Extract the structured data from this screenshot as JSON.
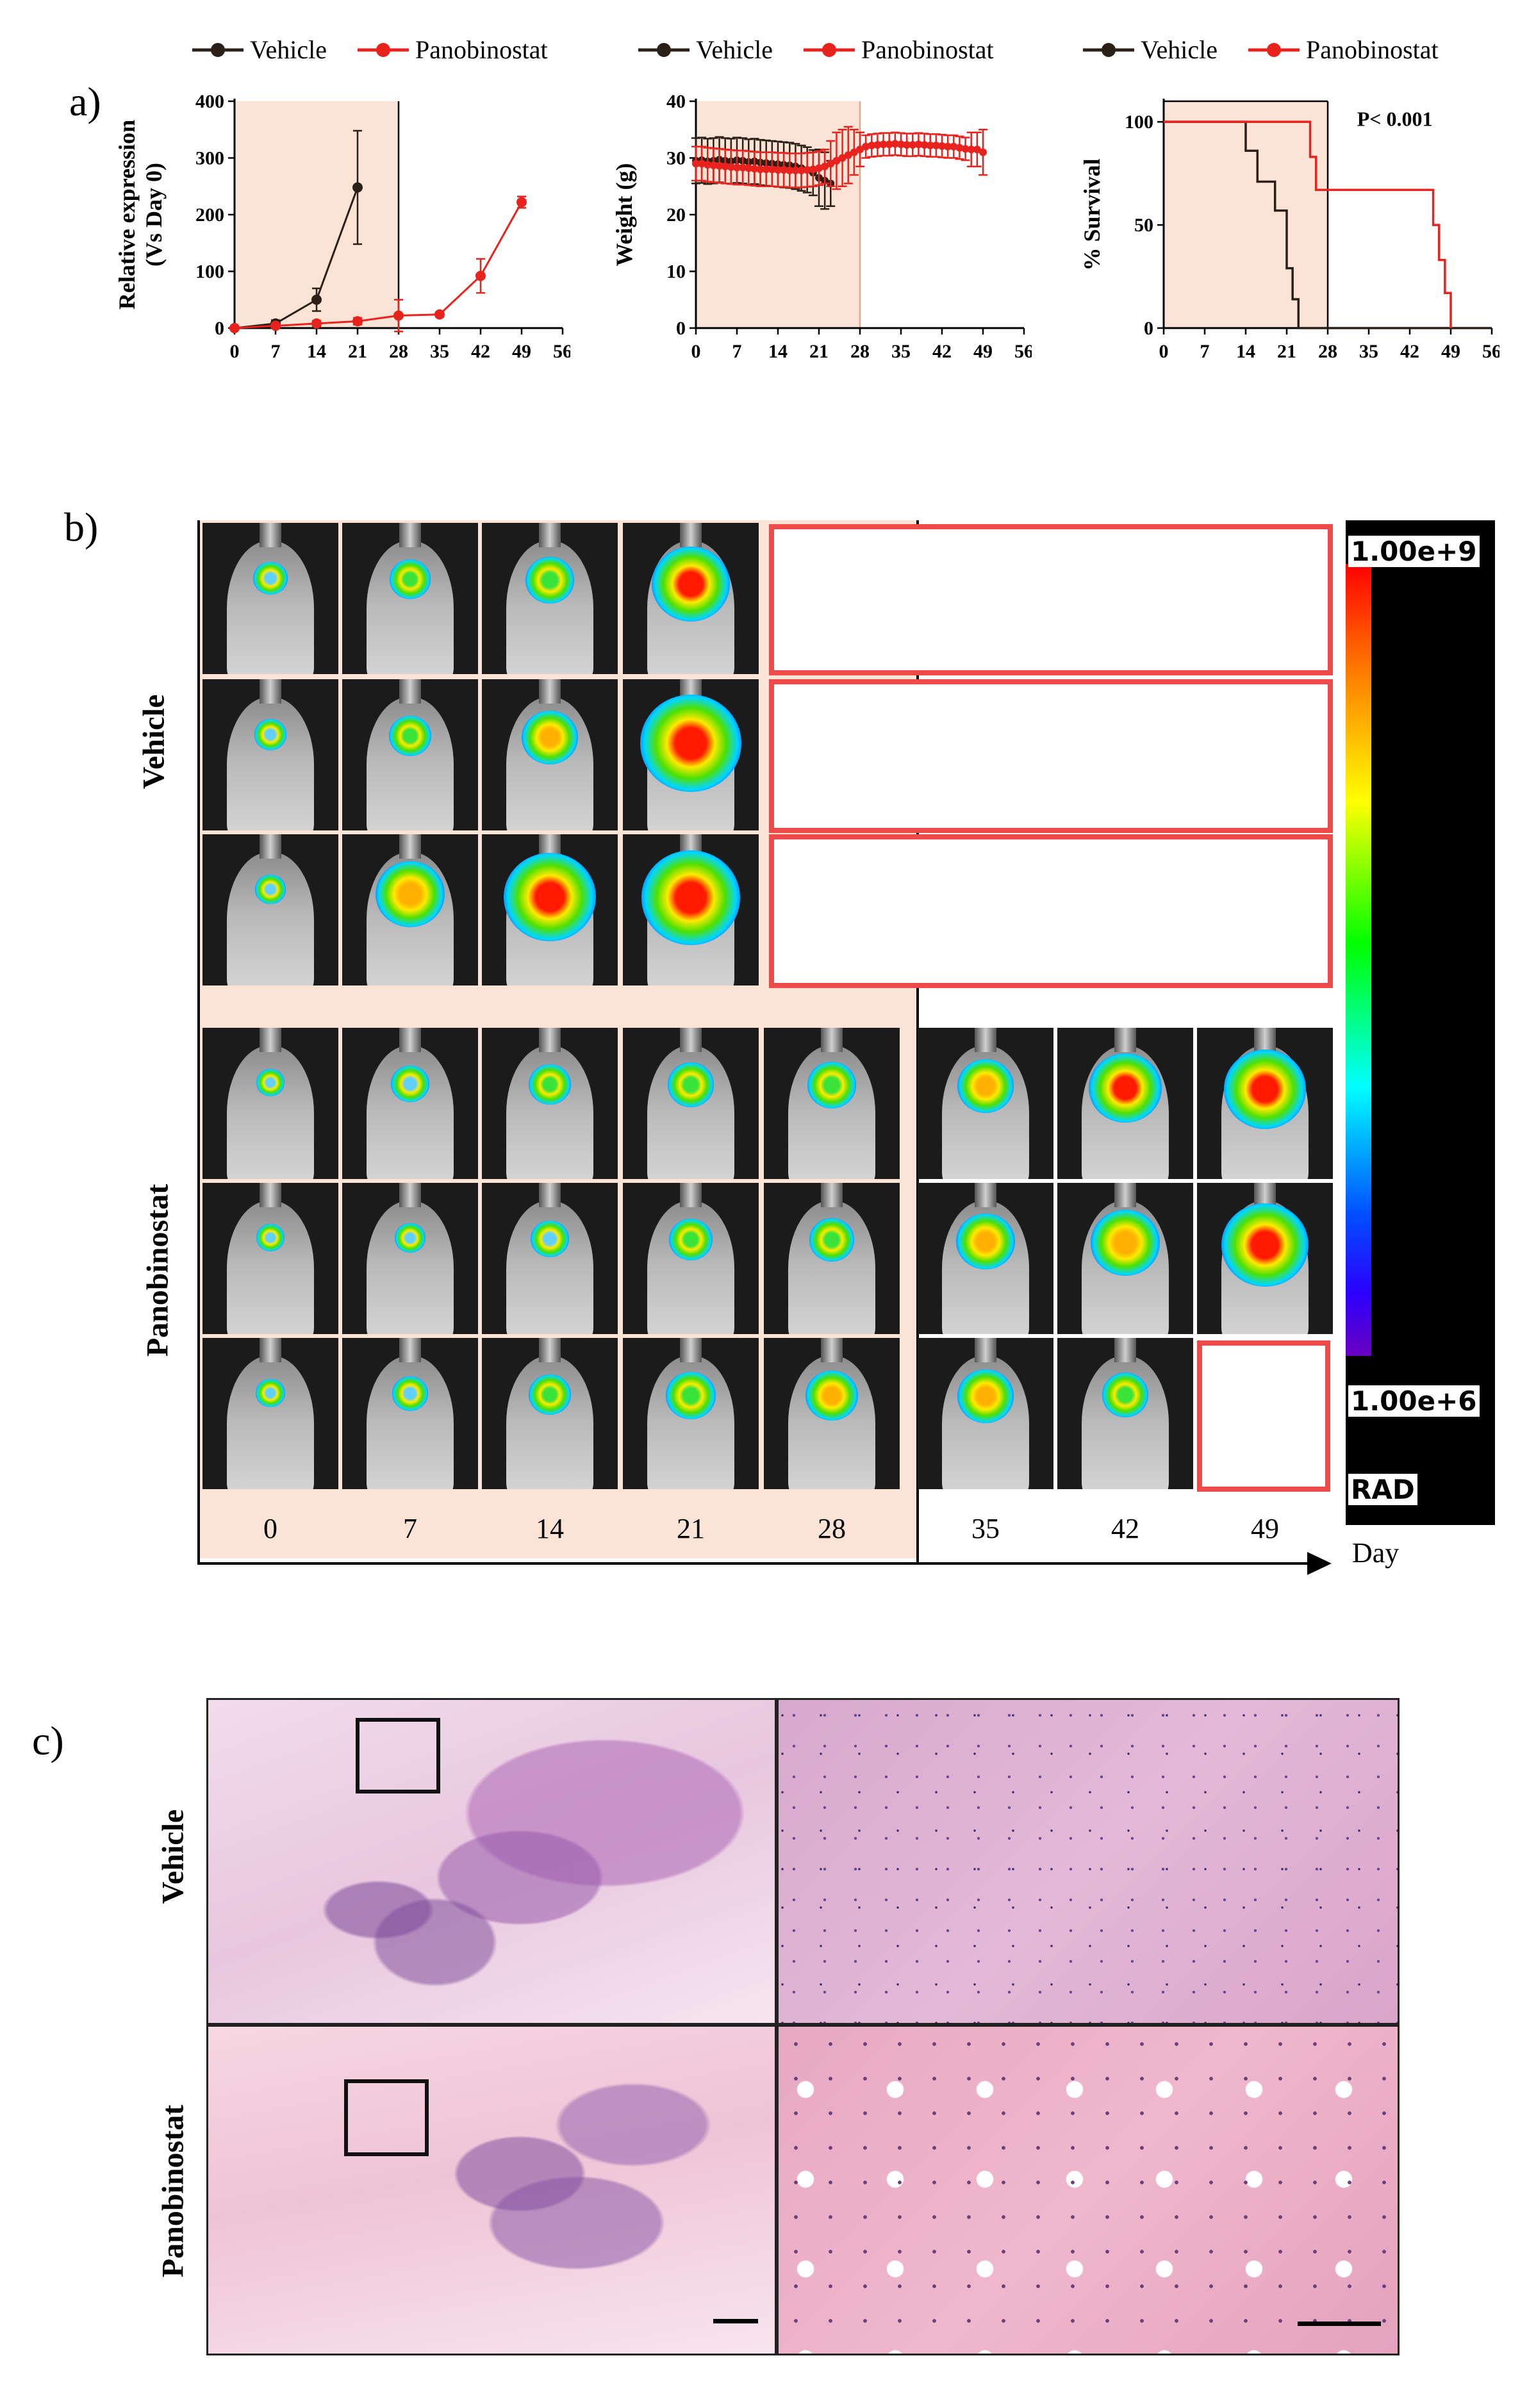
{
  "panel_labels": {
    "a": "a)",
    "b": "b)",
    "c": "c)"
  },
  "legend": {
    "vehicle": "Vehicle",
    "panobinostat": "Panobinostat"
  },
  "colors": {
    "vehicle": "#2b2018",
    "panobinostat": "#e8231d",
    "treatment_shade": "#fbe3d6",
    "empty_box": "#ef4a4a"
  },
  "chart_data": [
    {
      "type": "line",
      "ylabel": "Relative expression (Vs Day 0)",
      "ylabel_line1": "Relative expression",
      "ylabel_line2": "(Vs Day 0)",
      "xticks": [
        0,
        7,
        14,
        21,
        28,
        35,
        42,
        49,
        56
      ],
      "yticks": [
        0,
        100,
        200,
        300,
        400
      ],
      "xlim": [
        0,
        56
      ],
      "ylim": [
        0,
        400
      ],
      "shaded_x": [
        0,
        28
      ],
      "series": [
        {
          "name": "Vehicle",
          "x": [
            0,
            7,
            14,
            21
          ],
          "y": [
            0,
            8,
            50,
            248
          ],
          "err": [
            0,
            6,
            20,
            100
          ]
        },
        {
          "name": "Panobinostat",
          "x": [
            0,
            7,
            14,
            21,
            28,
            35,
            42,
            49
          ],
          "y": [
            0,
            4,
            8,
            12,
            22,
            24,
            92,
            222
          ],
          "err": [
            0,
            3,
            5,
            6,
            28,
            4,
            30,
            10
          ]
        }
      ]
    },
    {
      "type": "line",
      "ylabel": "Weight (g)",
      "xticks": [
        0,
        7,
        14,
        21,
        28,
        35,
        42,
        49,
        56
      ],
      "yticks": [
        0,
        10,
        20,
        30,
        40
      ],
      "xlim": [
        0,
        56
      ],
      "ylim": [
        0,
        40
      ],
      "shaded_x": [
        0,
        28
      ],
      "series": [
        {
          "name": "Vehicle",
          "x": [
            0,
            1,
            2,
            3,
            4,
            5,
            6,
            7,
            8,
            9,
            10,
            11,
            12,
            13,
            14,
            15,
            16,
            17,
            18,
            19,
            20,
            21,
            22,
            23
          ],
          "y": [
            29.5,
            29.6,
            29.4,
            29.5,
            29.7,
            29.5,
            29.4,
            29.6,
            29.5,
            29.3,
            29.4,
            29.2,
            29.1,
            29.0,
            28.9,
            28.8,
            28.7,
            28.5,
            28.2,
            27.9,
            27.4,
            26.5,
            26.0,
            25.5
          ],
          "err": [
            4,
            4,
            4,
            4,
            4,
            4,
            4,
            4,
            4,
            4,
            4,
            4,
            4,
            4,
            4,
            4,
            4,
            4,
            4,
            4,
            4,
            5,
            5,
            4
          ]
        },
        {
          "name": "Panobinostat",
          "x": [
            0,
            1,
            2,
            3,
            4,
            5,
            6,
            7,
            8,
            9,
            10,
            11,
            12,
            13,
            14,
            15,
            16,
            17,
            18,
            19,
            20,
            21,
            22,
            23,
            24,
            25,
            26,
            27,
            28,
            29,
            30,
            31,
            32,
            33,
            34,
            35,
            36,
            37,
            38,
            39,
            40,
            41,
            42,
            43,
            44,
            45,
            46,
            47,
            48,
            49
          ],
          "y": [
            29,
            29,
            28.8,
            28.7,
            28.6,
            28.5,
            28.4,
            28.3,
            28.3,
            28.2,
            28.1,
            28.0,
            28.0,
            28.0,
            27.9,
            27.9,
            27.8,
            27.8,
            27.8,
            27.9,
            28.0,
            28.2,
            28.5,
            29.0,
            29.5,
            30.0,
            30.5,
            31.0,
            31.5,
            32.0,
            32.2,
            32.3,
            32.4,
            32.4,
            32.5,
            32.4,
            32.3,
            32.3,
            32.4,
            32.3,
            32.2,
            32.2,
            32.1,
            32.0,
            32.0,
            31.8,
            31.6,
            31.5,
            31.5,
            31.0
          ],
          "err": [
            3,
            3,
            3,
            3,
            3,
            3,
            3,
            3,
            3,
            3,
            3,
            3,
            3,
            3,
            3,
            3,
            3,
            3,
            3,
            3,
            3,
            3,
            3,
            4,
            5,
            5,
            5,
            4,
            3,
            2,
            2,
            2,
            2,
            2,
            2,
            2,
            2,
            2,
            2,
            2,
            2,
            2,
            2,
            2,
            2,
            2,
            2,
            3,
            3,
            4
          ]
        }
      ]
    },
    {
      "type": "line",
      "ylabel": "% Survival",
      "annotation": "P< 0.001",
      "xticks": [
        0,
        7,
        14,
        21,
        28,
        35,
        42,
        49,
        56
      ],
      "yticks": [
        0,
        50,
        100
      ],
      "xlim": [
        0,
        56
      ],
      "ylim": [
        0,
        110
      ],
      "shaded_x": [
        0,
        28
      ],
      "series": [
        {
          "name": "Vehicle",
          "step_x": [
            0,
            14,
            14,
            16,
            16,
            19,
            19,
            21,
            21,
            22,
            22,
            23,
            23,
            56
          ],
          "step_y": [
            100,
            100,
            86,
            86,
            71,
            71,
            57,
            57,
            29,
            29,
            14,
            14,
            0,
            0
          ]
        },
        {
          "name": "Panobinostat",
          "step_x": [
            0,
            25,
            25,
            26,
            26,
            46,
            46,
            47,
            47,
            48,
            48,
            49,
            49
          ],
          "step_y": [
            100,
            100,
            83,
            83,
            67,
            67,
            50,
            50,
            33,
            33,
            17,
            17,
            0
          ]
        }
      ]
    }
  ],
  "panel_b": {
    "row_labels": {
      "vehicle": "Vehicle",
      "panobinostat": "Panobinostat"
    },
    "days": [
      "0",
      "7",
      "14",
      "21",
      "28",
      "35",
      "42",
      "49"
    ],
    "axis_label": "Day",
    "colorbar": {
      "max": "1.00e+9",
      "min": "1.00e+6",
      "unit": "RAD"
    },
    "vehicle_signal": [
      [
        0.18,
        0.25,
        0.32,
        0.62
      ],
      [
        0.16,
        0.26,
        0.4,
        0.85
      ],
      [
        0.14,
        0.52,
        0.76,
        0.82
      ]
    ],
    "panobinostat_signal": [
      [
        0.12,
        0.22,
        0.26,
        0.3,
        0.32,
        0.4,
        0.56,
        0.66
      ],
      [
        0.12,
        0.14,
        0.22,
        0.27,
        0.29,
        0.42,
        0.52,
        0.7
      ],
      [
        0.13,
        0.2,
        0.26,
        0.33,
        0.36,
        0.4,
        0.3
      ]
    ]
  },
  "panel_c": {
    "row_labels": {
      "vehicle": "Vehicle",
      "panobinostat": "Panobinostat"
    }
  }
}
